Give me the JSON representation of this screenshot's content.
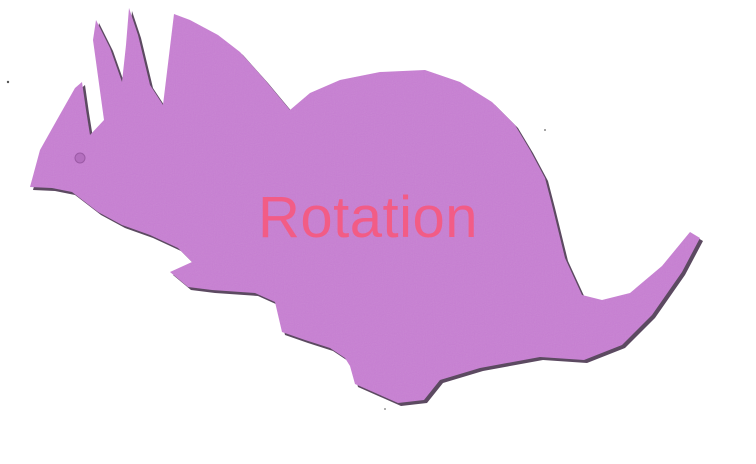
{
  "image": {
    "subject_icon": "triceratops-foam-cutout",
    "background_color": "#ffffff",
    "shape_color": "#c87fd3",
    "shape_edge_color": "#3f2a45"
  },
  "caption": {
    "text": "Rotation",
    "color": "#f25c86"
  }
}
